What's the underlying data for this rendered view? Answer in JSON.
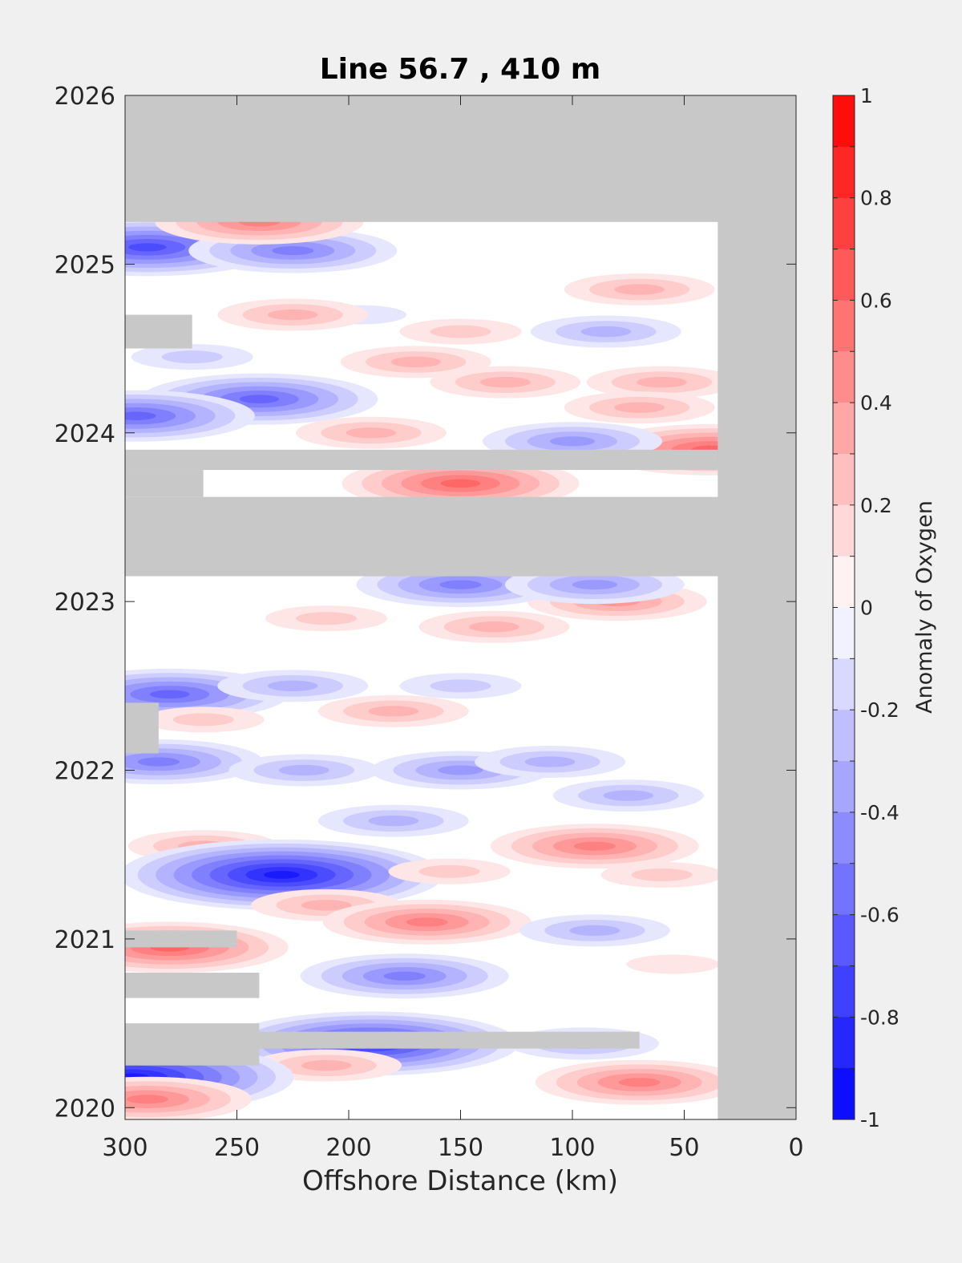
{
  "chart_data": {
    "type": "heatmap",
    "title": "Line 56.7 , 410 m",
    "xlabel": "Offshore Distance (km)",
    "ylabel": "",
    "xlim": [
      300,
      0
    ],
    "x_reversed": true,
    "ylim": [
      2019.93,
      2026
    ],
    "x_ticks": [
      "300",
      "250",
      "200",
      "150",
      "100",
      "50",
      "0"
    ],
    "y_ticks": [
      "2020",
      "2021",
      "2022",
      "2023",
      "2024",
      "2025",
      "2026"
    ],
    "colorbar": {
      "label": "Anomaly of Oxygen",
      "range": [
        -1,
        1
      ],
      "levels": 20,
      "ticks": [
        "1",
        "0.8",
        "0.6",
        "0.4",
        "0.2",
        "0",
        "-0.2",
        "-0.4",
        "-0.6",
        "-0.8",
        "-1"
      ],
      "colormap": "blue-white-red"
    },
    "colors": {
      "no_data": "#c8c8c8",
      "min": "#0000ff",
      "zero": "#ffffff",
      "max": "#ff0000",
      "background": "#f0f0f0"
    },
    "missing_data": [
      {
        "x": [
          0,
          35
        ],
        "y": [
          2019.93,
          2026
        ]
      },
      {
        "x": [
          0,
          300
        ],
        "y": [
          2025.25,
          2026
        ]
      },
      {
        "x": [
          0,
          300
        ],
        "y": [
          2023.15,
          2023.62
        ]
      },
      {
        "x": [
          35,
          300
        ],
        "y": [
          2023.78,
          2023.9
        ]
      },
      {
        "x": [
          265,
          300
        ],
        "y": [
          2023.62,
          2023.78
        ]
      },
      {
        "x": [
          270,
          300
        ],
        "y": [
          2024.5,
          2024.7
        ]
      },
      {
        "x": [
          285,
          300
        ],
        "y": [
          2022.1,
          2022.4
        ]
      },
      {
        "x": [
          250,
          300
        ],
        "y": [
          2020.95,
          2021.05
        ]
      },
      {
        "x": [
          240,
          300
        ],
        "y": [
          2020.65,
          2020.8
        ]
      },
      {
        "x": [
          70,
          300
        ],
        "y": [
          2020.35,
          2020.45
        ]
      },
      {
        "x": [
          240,
          300
        ],
        "y": [
          2020.25,
          2020.5
        ]
      }
    ],
    "anomalies": [
      {
        "x": 290,
        "y": 2025.1,
        "value": -0.7
      },
      {
        "x": 225,
        "y": 2025.08,
        "value": -0.5
      },
      {
        "x": 240,
        "y": 2025.25,
        "value": 0.45
      },
      {
        "x": 195,
        "y": 2024.7,
        "value": -0.15
      },
      {
        "x": 150,
        "y": 2024.6,
        "value": 0.2
      },
      {
        "x": 225,
        "y": 2024.7,
        "value": 0.3
      },
      {
        "x": 70,
        "y": 2024.85,
        "value": 0.35
      },
      {
        "x": 85,
        "y": 2024.6,
        "value": -0.25
      },
      {
        "x": 270,
        "y": 2024.45,
        "value": -0.2
      },
      {
        "x": 170,
        "y": 2024.42,
        "value": 0.3
      },
      {
        "x": 130,
        "y": 2024.3,
        "value": 0.35
      },
      {
        "x": 60,
        "y": 2024.3,
        "value": 0.35
      },
      {
        "x": 240,
        "y": 2024.2,
        "value": -0.6
      },
      {
        "x": 295,
        "y": 2024.1,
        "value": -0.6
      },
      {
        "x": 70,
        "y": 2024.15,
        "value": 0.25
      },
      {
        "x": 38,
        "y": 2023.9,
        "value": 0.6
      },
      {
        "x": 150,
        "y": 2023.7,
        "value": 0.55
      },
      {
        "x": 100,
        "y": 2023.95,
        "value": -0.4
      },
      {
        "x": 190,
        "y": 2024.0,
        "value": 0.25
      },
      {
        "x": 80,
        "y": 2023.0,
        "value": 0.4
      },
      {
        "x": 150,
        "y": 2023.1,
        "value": -0.45
      },
      {
        "x": 90,
        "y": 2023.1,
        "value": -0.4
      },
      {
        "x": 135,
        "y": 2022.85,
        "value": 0.25
      },
      {
        "x": 210,
        "y": 2022.9,
        "value": 0.2
      },
      {
        "x": 280,
        "y": 2022.45,
        "value": -0.55
      },
      {
        "x": 225,
        "y": 2022.5,
        "value": -0.25
      },
      {
        "x": 150,
        "y": 2022.5,
        "value": -0.2
      },
      {
        "x": 180,
        "y": 2022.35,
        "value": 0.25
      },
      {
        "x": 265,
        "y": 2022.3,
        "value": 0.2
      },
      {
        "x": 285,
        "y": 2022.05,
        "value": -0.5
      },
      {
        "x": 220,
        "y": 2022.0,
        "value": -0.25
      },
      {
        "x": 150,
        "y": 2022.0,
        "value": -0.4
      },
      {
        "x": 110,
        "y": 2022.05,
        "value": -0.35
      },
      {
        "x": 75,
        "y": 2021.85,
        "value": -0.3
      },
      {
        "x": 180,
        "y": 2021.7,
        "value": -0.3
      },
      {
        "x": 265,
        "y": 2021.55,
        "value": 0.35
      },
      {
        "x": 90,
        "y": 2021.55,
        "value": 0.5
      },
      {
        "x": 230,
        "y": 2021.38,
        "value": -0.85
      },
      {
        "x": 155,
        "y": 2021.4,
        "value": 0.2
      },
      {
        "x": 60,
        "y": 2021.38,
        "value": 0.2
      },
      {
        "x": 210,
        "y": 2021.2,
        "value": 0.3
      },
      {
        "x": 165,
        "y": 2021.1,
        "value": 0.5
      },
      {
        "x": 90,
        "y": 2021.05,
        "value": -0.3
      },
      {
        "x": 280,
        "y": 2020.95,
        "value": 0.55
      },
      {
        "x": 175,
        "y": 2020.78,
        "value": -0.45
      },
      {
        "x": 55,
        "y": 2020.85,
        "value": 0.15
      },
      {
        "x": 190,
        "y": 2020.38,
        "value": -0.75
      },
      {
        "x": 95,
        "y": 2020.38,
        "value": -0.3
      },
      {
        "x": 210,
        "y": 2020.25,
        "value": 0.25
      },
      {
        "x": 70,
        "y": 2020.15,
        "value": 0.45
      },
      {
        "x": 297,
        "y": 2020.18,
        "value": -0.85
      },
      {
        "x": 290,
        "y": 2020.05,
        "value": 0.45
      }
    ]
  }
}
